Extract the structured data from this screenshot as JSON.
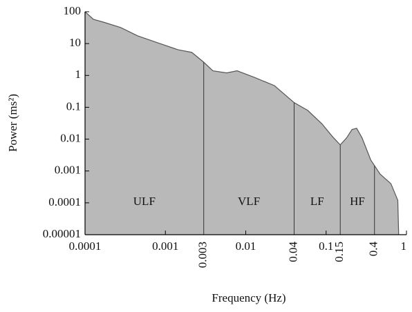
{
  "chart_data": {
    "type": "area",
    "x_label": "Frequency (Hz)",
    "y_label": "Power (ms²)",
    "log_x": true,
    "log_y": true,
    "color": "#b9b9b9",
    "xlim": [
      0.0001,
      1
    ],
    "ylim": [
      1e-05,
      100
    ],
    "xticks": [
      0.0001,
      0.001,
      0.01,
      0.1,
      1
    ],
    "yticks": [
      100,
      10,
      1,
      0.1,
      0.01,
      0.001,
      0.0001,
      1e-05
    ],
    "band_edges": [
      0.003,
      0.04,
      0.15,
      0.4
    ],
    "band_labels": [
      "ULF",
      "VLF",
      "LF",
      "HF"
    ],
    "x": [
      0.0001,
      0.000127,
      0.00017,
      0.000277,
      0.000452,
      0.0008,
      0.00144,
      0.00213,
      0.003,
      0.0039,
      0.0058,
      0.0078,
      0.0128,
      0.0227,
      0.04,
      0.059,
      0.089,
      0.12,
      0.15,
      0.18,
      0.21,
      0.24,
      0.28,
      0.36,
      0.47,
      0.64,
      0.78,
      0.8
    ],
    "values": [
      100,
      58,
      47,
      32,
      17.5,
      10.6,
      6.4,
      5.3,
      2.6,
      1.4,
      1.2,
      1.4,
      0.87,
      0.48,
      0.14,
      0.08,
      0.03,
      0.012,
      0.0066,
      0.011,
      0.02,
      0.022,
      0.011,
      0.0022,
      0.0008,
      0.0004,
      0.00012,
      1e-05
    ]
  }
}
